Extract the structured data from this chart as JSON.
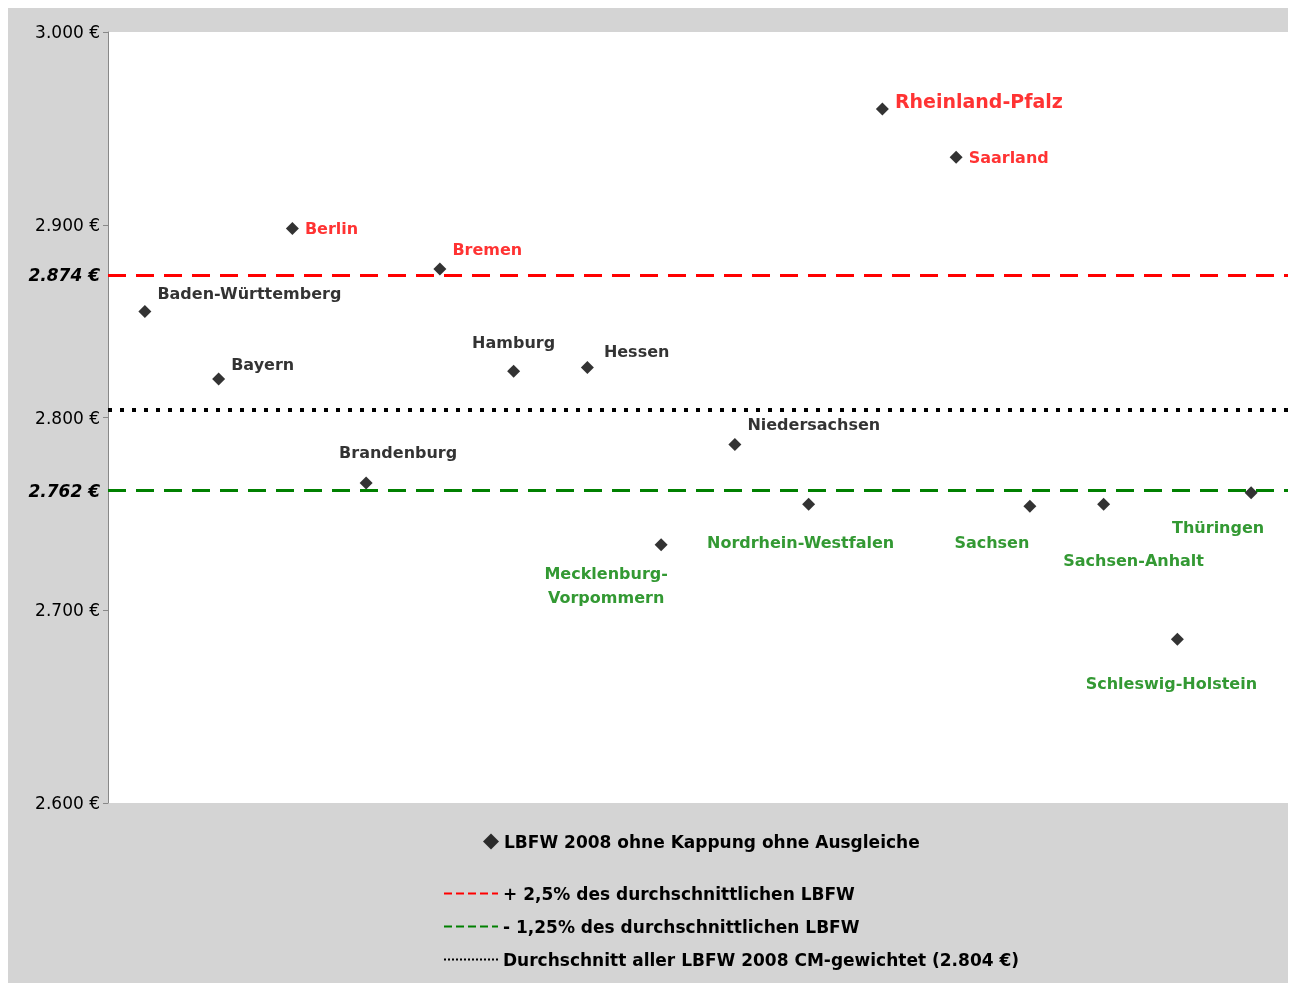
{
  "chart_data": {
    "type": "scatter",
    "categories": [
      null,
      null,
      null,
      null,
      null,
      null,
      null,
      null,
      null,
      null,
      null,
      null,
      null,
      null,
      null,
      null
    ],
    "series": [
      {
        "name": "LBFW 2008 ohne Kappung ohne Ausgleiche",
        "color": "#000000",
        "values": [
          2855,
          2820,
          2898,
          2766,
          2877,
          2824,
          2826,
          2734,
          2786,
          2755,
          2960,
          2935,
          2754,
          2755,
          2685,
          2761
        ]
      }
    ],
    "annotations": [
      "Baden-Württemberg",
      "Bayern",
      "Berlin",
      "Brandenburg",
      "Bremen",
      "Hamburg",
      "Hessen",
      "Mecklenburg-Vorpommern",
      "Niedersachsen",
      "Nordrhein-Westfalen",
      "Rheinland-Pfalz",
      "Saarland",
      "Sachsen",
      "Sachsen-Anhalt",
      "Schleswig-Holstein",
      "Thüringen"
    ],
    "ylim": [
      2600,
      3000
    ],
    "yticks": [
      {
        "value": 2600,
        "label": "2.600 €"
      },
      {
        "value": 2700,
        "label": "2.700 €"
      },
      {
        "value": 2762,
        "label": "2.762 €"
      },
      {
        "value": 2800,
        "label": "2.800 €"
      },
      {
        "value": 2874,
        "label": "2.874 €"
      },
      {
        "value": 2900,
        "label": "2.900 €"
      },
      {
        "value": 3000,
        "label": "3.000 €"
      }
    ],
    "ref_lines": [
      {
        "axis": "y",
        "value": 2874,
        "label": "+ 2,5% des durchschnittlichen LBFW",
        "color": "#ff0000",
        "line_style": "dashed"
      },
      {
        "axis": "y",
        "value": 2762,
        "label": "- 1,25% des durchschnittlichen LBFW",
        "color": "#008000",
        "line_style": "dashed"
      },
      {
        "axis": "y",
        "value": 2804,
        "label": "Durchschnitt aller LBFW 2008 CM-gewichtet (2.804 €)",
        "color": "#000000",
        "line_style": "dotted"
      }
    ],
    "marker": "diamond",
    "grid": false,
    "legend": "bottom",
    "tick_labels": "y"
  }
}
